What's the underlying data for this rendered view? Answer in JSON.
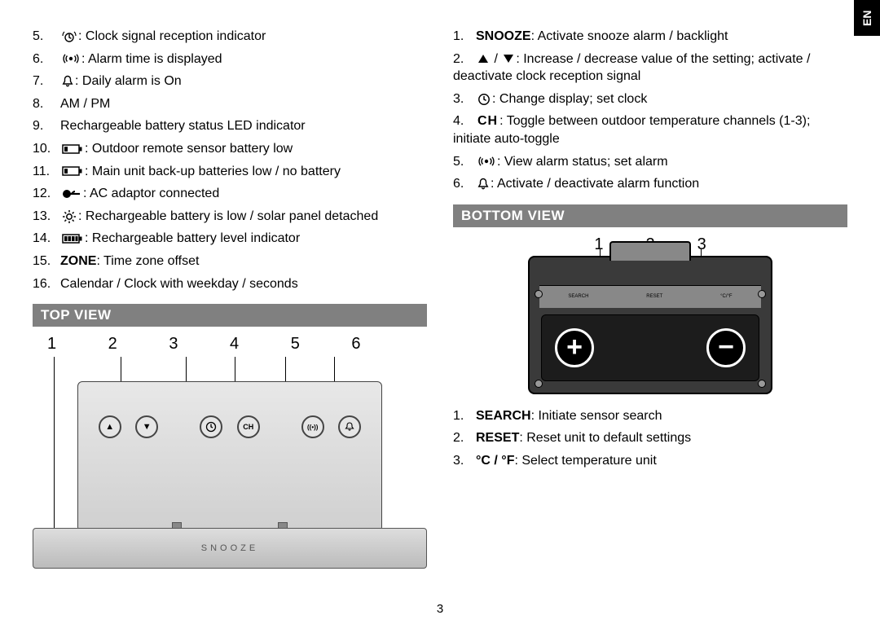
{
  "lang_tab": "EN",
  "page_number": "3",
  "left": {
    "items": [
      {
        "n": "5.",
        "icon": "clock-signal",
        "text": ": Clock signal reception indicator"
      },
      {
        "n": "6.",
        "icon": "alarm-signal",
        "text": ": Alarm time is displayed"
      },
      {
        "n": "7.",
        "icon": "bell",
        "text": ": Daily alarm is On"
      },
      {
        "n": "8.",
        "text": "AM / PM"
      },
      {
        "n": "9.",
        "text": "Rechargeable battery status LED indicator"
      },
      {
        "n": "10.",
        "icon": "battery-low",
        "text": ": Outdoor remote sensor battery low"
      },
      {
        "n": "11.",
        "icon": "battery-low",
        "text": ": Main unit back-up batteries low / no battery"
      },
      {
        "n": "12.",
        "icon": "ac-plug",
        "text": ": AC adaptor connected"
      },
      {
        "n": "13.",
        "icon": "sun",
        "text": ": Rechargeable battery is low / solar panel detached"
      },
      {
        "n": "14.",
        "icon": "battery-full",
        "text": ": Rechargeable battery level indicator"
      },
      {
        "n": "15.",
        "bold": "ZONE",
        "text": ": Time zone offset"
      },
      {
        "n": "16.",
        "text": "Calendar / Clock with weekday / seconds"
      }
    ],
    "section_header": "TOP VIEW",
    "top_labels": [
      "1",
      "2",
      "3",
      "4",
      "5",
      "6"
    ],
    "snooze_label": "SNOOZE"
  },
  "right": {
    "items_a": [
      {
        "n": "1.",
        "bold": "SNOOZE",
        "text": ": Activate snooze alarm / backlight"
      },
      {
        "n": "2.",
        "icon_pair": [
          "up-triangle",
          "down-triangle"
        ],
        "text": ": Increase / decrease value of the setting; activate / deactivate clock reception signal"
      },
      {
        "n": "3.",
        "icon": "clock",
        "text": ": Change display; set clock"
      },
      {
        "n": "4.",
        "icon": "ch",
        "text": ": Toggle between outdoor temperature channels (1-3); initiate auto-toggle"
      },
      {
        "n": "5.",
        "icon": "alarm-signal",
        "text": ": View alarm status; set alarm"
      },
      {
        "n": "6.",
        "icon": "bell",
        "text": ": Activate / deactivate alarm function"
      }
    ],
    "section_header": "BOTTOM VIEW",
    "bottom_labels": [
      "1",
      "2",
      "3"
    ],
    "bottom_plate_labels": [
      "SEARCH",
      "RESET",
      "°C/°F"
    ],
    "items_b": [
      {
        "n": "1.",
        "bold": "SEARCH",
        "text": ": Initiate sensor search"
      },
      {
        "n": "2.",
        "bold": "RESET",
        "text": ": Reset unit to default settings"
      },
      {
        "n": "3.",
        "bold": "°C / °F",
        "text": ": Select temperature unit"
      }
    ]
  }
}
